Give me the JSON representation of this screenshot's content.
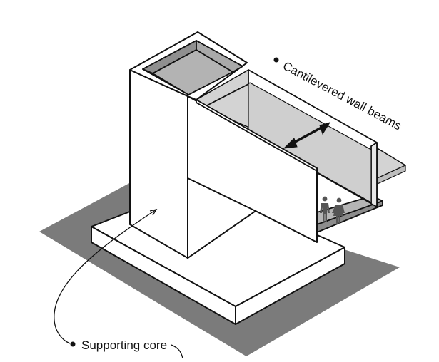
{
  "labels": {
    "beams": "Cantilevered wall beams",
    "core": "Supporting core"
  },
  "colors": {
    "shadow": "#7b7b7b",
    "wall_face": "#ffffff",
    "inner_shade": "#8f8f8f",
    "glass": "#c9c9c9",
    "floor_slab": "#b5b5b5",
    "ink": "#111111"
  },
  "icons": [
    "double-arrow-icon",
    "people-icon",
    "bullet-icon"
  ]
}
